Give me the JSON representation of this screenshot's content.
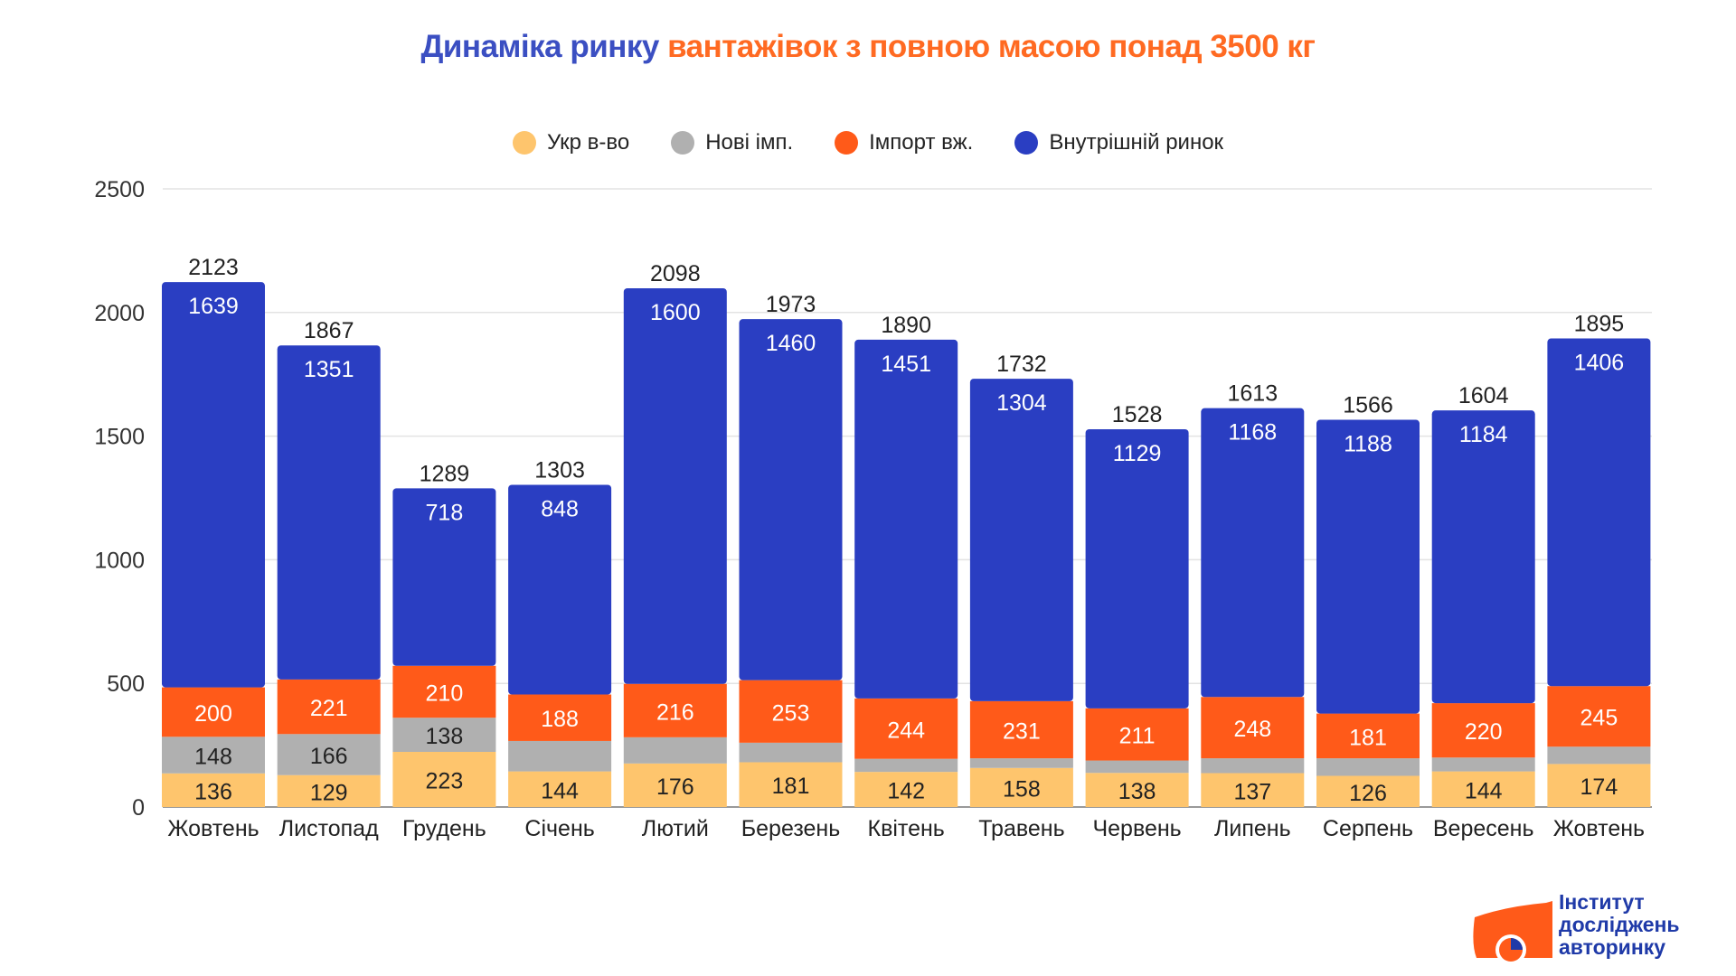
{
  "title": {
    "part1": "Динаміка ринку",
    "part2": "вантажівок з повною масою понад 3500 кг"
  },
  "logo": {
    "line1": "Інститут",
    "line2": "досліджень",
    "line3": "авторинку"
  },
  "colors": {
    "title_blue": "#3b4fc2",
    "title_orange": "#ff6a22"
  },
  "chart_data": {
    "type": "bar",
    "stacked": true,
    "title": "Динаміка ринку вантажівок з повною масою понад 3500 кг",
    "xlabel": "",
    "ylabel": "",
    "ylim": [
      0,
      2500
    ],
    "yticks": [
      0,
      500,
      1000,
      1500,
      2000,
      2500
    ],
    "grid": true,
    "legend_position": "top-center",
    "categories": [
      "Жовтень",
      "Листопад",
      "Грудень",
      "Січень",
      "Лютий",
      "Березень",
      "Квітень",
      "Травень",
      "Червень",
      "Липень",
      "Серпень",
      "Вересень",
      "Жовтень"
    ],
    "series": [
      {
        "name": "Укр в-во",
        "color": "#fec56d",
        "label_color": "#222222",
        "values": [
          136,
          129,
          223,
          144,
          176,
          181,
          142,
          158,
          138,
          137,
          126,
          144,
          174
        ],
        "labels_shown": [
          true,
          true,
          true,
          true,
          true,
          true,
          true,
          true,
          true,
          true,
          true,
          true,
          true
        ]
      },
      {
        "name": "Нові імп.",
        "color": "#b0b0b0",
        "label_color": "#222222",
        "values": [
          148,
          166,
          138,
          123,
          106,
          79,
          53,
          39,
          50,
          60,
          71,
          56,
          70
        ],
        "labels_shown": [
          true,
          true,
          true,
          false,
          false,
          false,
          false,
          false,
          false,
          false,
          false,
          false,
          false
        ]
      },
      {
        "name": "Імпорт вж.",
        "color": "#ff5a19",
        "label_color": "#ffffff",
        "values": [
          200,
          221,
          210,
          188,
          216,
          253,
          244,
          231,
          211,
          248,
          181,
          220,
          245
        ],
        "labels_shown": [
          true,
          true,
          true,
          true,
          true,
          true,
          true,
          true,
          true,
          true,
          true,
          true,
          true
        ]
      },
      {
        "name": "Внутрішній ринок",
        "color": "#2a3ec2",
        "label_color": "#ffffff",
        "values": [
          1639,
          1351,
          718,
          848,
          1600,
          1460,
          1451,
          1304,
          1129,
          1168,
          1188,
          1184,
          1406
        ],
        "labels_shown": [
          true,
          true,
          true,
          true,
          true,
          true,
          true,
          true,
          true,
          true,
          true,
          true,
          true
        ]
      }
    ],
    "totals": [
      2123,
      1867,
      1289,
      1303,
      2098,
      1973,
      1890,
      1732,
      1528,
      1613,
      1566,
      1604,
      1895
    ]
  }
}
